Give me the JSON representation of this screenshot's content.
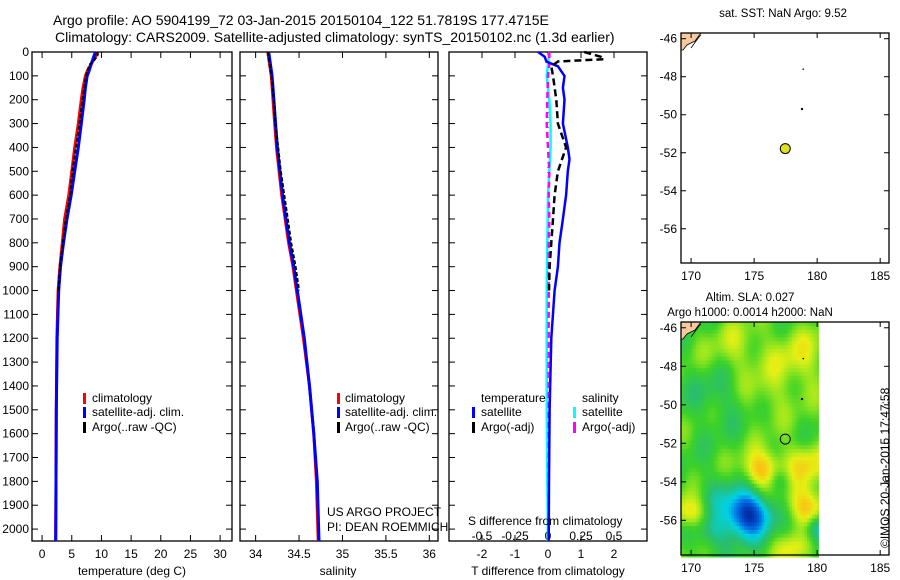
{
  "title_line1": "Argo profile: AO 5904199_72 03-Jan-2015 20150104_122 51.7819S 177.4715E",
  "title_line2": "Climatology: CARS2009. Satellite-adjusted climatology: synTS_20150102.nc (1.3d earlier)",
  "credit": "©IMOS 20-Jan-2015 17:47:58",
  "project_line1": "US ARGO PROJECT",
  "project_line2": "PI: DEAN ROEMMICH",
  "colors": {
    "climatology": "#ff0000",
    "satellite": "#0000ff",
    "argo": "#000000",
    "sal_satellite": "#00ffff",
    "sal_argo": "#ff00ff",
    "land": "#f8c8a0",
    "float_marker": "#e0e020"
  },
  "chart_data": [
    {
      "type": "line",
      "name": "temperature-profile",
      "xlabel": "temperature (deg C)",
      "ylabel": "depth",
      "xlim": [
        -1.7,
        32
      ],
      "ylim": [
        2050,
        0
      ],
      "xticks": [
        "0",
        "5",
        "10",
        "15",
        "20",
        "25",
        "30"
      ],
      "yticks": [
        "0",
        "100",
        "200",
        "300",
        "400",
        "500",
        "600",
        "700",
        "800",
        "900",
        "1000",
        "1100",
        "1200",
        "1300",
        "1400",
        "1500",
        "1600",
        "1700",
        "1800",
        "1900",
        "2000"
      ],
      "legend": [
        "climatology",
        "satellite-adj. clim.",
        "Argo(..raw -QC)"
      ],
      "series": [
        {
          "name": "climatology",
          "depth": [
            0,
            20,
            50,
            80,
            100,
            150,
            200,
            300,
            400,
            500,
            600,
            700,
            800,
            900,
            1000,
            1200,
            1500,
            1800,
            2050
          ],
          "values": [
            9.3,
            9.0,
            8.3,
            7.6,
            7.3,
            6.9,
            6.6,
            6.1,
            5.5,
            5.0,
            4.5,
            3.8,
            3.4,
            3.0,
            2.7,
            2.5,
            2.4,
            2.35,
            2.3
          ]
        },
        {
          "name": "satellite-adj. clim.",
          "depth": [
            0,
            20,
            50,
            80,
            100,
            150,
            200,
            300,
            400,
            500,
            600,
            700,
            800,
            900,
            1000,
            1200,
            1500,
            1800,
            2050
          ],
          "values": [
            9.0,
            8.7,
            8.3,
            7.9,
            7.6,
            7.3,
            7.1,
            6.6,
            6.1,
            5.5,
            4.9,
            4.2,
            3.6,
            3.1,
            2.8,
            2.55,
            2.4,
            2.35,
            2.3
          ]
        },
        {
          "name": "Argo(..raw -QC)",
          "depth": [
            0,
            10,
            20,
            30,
            40,
            50,
            60,
            80,
            100,
            150,
            200,
            300,
            400,
            500,
            600,
            700,
            800,
            900,
            1000
          ],
          "values": [
            9.3,
            9.4,
            9.2,
            8.9,
            8.6,
            8.1,
            7.9,
            7.6,
            7.4,
            7.1,
            6.8,
            6.3,
            5.7,
            5.1,
            4.7,
            4.0,
            3.5,
            3.0,
            2.8
          ]
        }
      ]
    },
    {
      "type": "line",
      "name": "salinity-profile",
      "xlabel": "salinity",
      "xlim": [
        33.82,
        36.1
      ],
      "ylim": [
        2050,
        0
      ],
      "xticks": [
        "34",
        "34.5",
        "35",
        "35.5",
        "36"
      ],
      "legend": [
        "climatology",
        "satellite-adj. clim.",
        "Argo(..raw -QC)"
      ],
      "series": [
        {
          "name": "climatology",
          "depth": [
            0,
            50,
            100,
            200,
            300,
            400,
            500,
            600,
            700,
            800,
            900,
            1000,
            1200,
            1400,
            1600,
            1800,
            2050
          ],
          "values": [
            34.14,
            34.16,
            34.18,
            34.2,
            34.22,
            34.24,
            34.27,
            34.3,
            34.34,
            34.38,
            34.43,
            34.47,
            34.55,
            34.62,
            34.67,
            34.7,
            34.72
          ]
        },
        {
          "name": "satellite-adj. clim.",
          "depth": [
            0,
            50,
            100,
            200,
            300,
            400,
            500,
            600,
            700,
            800,
            900,
            1000,
            1200,
            1400,
            1600,
            1800,
            2050
          ],
          "values": [
            34.15,
            34.17,
            34.19,
            34.21,
            34.23,
            34.25,
            34.28,
            34.31,
            34.35,
            34.39,
            34.44,
            34.48,
            34.56,
            34.62,
            34.67,
            34.71,
            34.73
          ]
        },
        {
          "name": "Argo(..raw -QC)",
          "depth": [
            0,
            50,
            100,
            200,
            300,
            400,
            500,
            600,
            700,
            800,
            900,
            1000
          ],
          "values": [
            34.14,
            34.16,
            34.18,
            34.21,
            34.23,
            34.26,
            34.29,
            34.33,
            34.37,
            34.41,
            34.46,
            34.5
          ]
        }
      ]
    },
    {
      "type": "line",
      "name": "difference-profile",
      "xlabel": "T difference from climatology",
      "xlabel_top": "S difference from climatology",
      "xlim": [
        -3,
        3
      ],
      "ylim": [
        2050,
        0
      ],
      "xticks": [
        "-2",
        "-1",
        "0",
        "1",
        "2"
      ],
      "xticks_s": [
        "-0.5",
        "-0.25",
        "0",
        "0.25",
        "0.5"
      ],
      "legend_headers": [
        "temperature",
        "salinity"
      ],
      "legend": [
        "satellite",
        "Argo(-adj)",
        "satellite",
        "Argo(-adj)"
      ],
      "series": [
        {
          "name": "T satellite",
          "units": "degC",
          "depth": [
            0,
            20,
            40,
            60,
            100,
            150,
            200,
            300,
            400,
            450,
            500,
            600,
            700,
            800,
            900,
            1000,
            1200,
            1500,
            1800,
            2050
          ],
          "values": [
            -0.3,
            -0.1,
            -0.05,
            0.3,
            0.5,
            0.45,
            0.5,
            0.45,
            0.6,
            0.65,
            0.6,
            0.55,
            0.45,
            0.35,
            0.3,
            0.2,
            0.1,
            0.05,
            0.03,
            0.02
          ]
        },
        {
          "name": "T Argo(-adj)",
          "units": "degC",
          "depth": [
            0,
            20,
            30,
            40,
            60,
            100,
            200,
            300,
            400,
            500,
            600,
            700,
            800,
            900,
            1000
          ],
          "values": [
            1.1,
            1.6,
            1.7,
            0.3,
            0.1,
            0.15,
            0.25,
            0.3,
            0.55,
            0.3,
            0.2,
            0.15,
            0.1,
            0.05,
            0.03
          ]
        },
        {
          "name": "S satellite",
          "units": "psu",
          "depth": [
            0,
            50,
            100,
            200,
            300,
            400,
            600,
            800,
            1000,
            1200,
            1500,
            1800,
            2050
          ],
          "values": [
            0.01,
            0.0,
            -0.01,
            0.01,
            0.02,
            0.02,
            0.0,
            -0.005,
            -0.01,
            -0.01,
            -0.01,
            -0.005,
            0.0
          ]
        },
        {
          "name": "S Argo(-adj)",
          "units": "psu",
          "depth": [
            0,
            50,
            100,
            200,
            300,
            400,
            500,
            600,
            700,
            800,
            900,
            1000,
            1500,
            2050
          ],
          "values": [
            0.01,
            0.01,
            0.0,
            -0.005,
            -0.01,
            0.0,
            0.01,
            0.005,
            0.01,
            0.005,
            0.005,
            0.005,
            0.005,
            0.005
          ]
        }
      ]
    },
    {
      "type": "scatter",
      "name": "sst-map",
      "title": "sat. SST: NaN Argo: 9.52",
      "xlim": [
        169.2,
        185.7
      ],
      "ylim": [
        -57.8,
        -45.7
      ],
      "xticks": [
        "170",
        "175",
        "180",
        "185"
      ],
      "yticks": [
        "-46",
        "-48",
        "-50",
        "-52",
        "-54",
        "-56"
      ],
      "float_position": {
        "lon": 177.4715,
        "lat": -51.7819
      }
    },
    {
      "type": "heatmap",
      "name": "sla-map",
      "title_line1": "Altim. SLA: 0.027",
      "title_line2": "Argo h1000: 0.0014 h2000: NaN",
      "xlim": [
        169.2,
        185.7
      ],
      "ylim": [
        -57.8,
        -45.7
      ],
      "data_lon_range": [
        169.2,
        180.1
      ],
      "xticks": [
        "170",
        "175",
        "180",
        "185"
      ],
      "yticks": [
        "-46",
        "-48",
        "-50",
        "-52",
        "-54",
        "-56"
      ],
      "float_position": {
        "lon": 177.4715,
        "lat": -51.7819
      },
      "anomalies": [
        {
          "lon": 174.4,
          "lat": -55.6,
          "amp": -1.0,
          "r": 0.8
        },
        {
          "lon": 175.6,
          "lat": -53.3,
          "amp": 0.55,
          "r": 0.7
        },
        {
          "lon": 179.1,
          "lat": -55.2,
          "amp": 0.5,
          "r": 0.7
        },
        {
          "lon": 169.8,
          "lat": -55.5,
          "amp": 0.4,
          "r": 0.6
        },
        {
          "lon": 179.0,
          "lat": -53.0,
          "amp": 0.35,
          "r": 0.8
        },
        {
          "lon": 180.0,
          "lat": -56.3,
          "amp": -0.45,
          "r": 0.5
        },
        {
          "lon": 171.5,
          "lat": -56.5,
          "amp": -0.3,
          "r": 0.6
        },
        {
          "lon": 176.9,
          "lat": -53.8,
          "amp": -0.25,
          "r": 0.5
        },
        {
          "lon": 172.0,
          "lat": -49.5,
          "amp": -0.15,
          "r": 1.0
        },
        {
          "lon": 178.5,
          "lat": -47.5,
          "amp": 0.25,
          "r": 1.2
        },
        {
          "lon": 173.5,
          "lat": -47.0,
          "amp": 0.2,
          "r": 1.0
        },
        {
          "lon": 176.0,
          "lat": -49.5,
          "amp": 0.15,
          "r": 0.9
        },
        {
          "lon": 178.0,
          "lat": -57.5,
          "amp": 0.3,
          "r": 0.6
        },
        {
          "lon": 172.0,
          "lat": -54.5,
          "amp": -0.15,
          "r": 0.8
        }
      ]
    }
  ]
}
